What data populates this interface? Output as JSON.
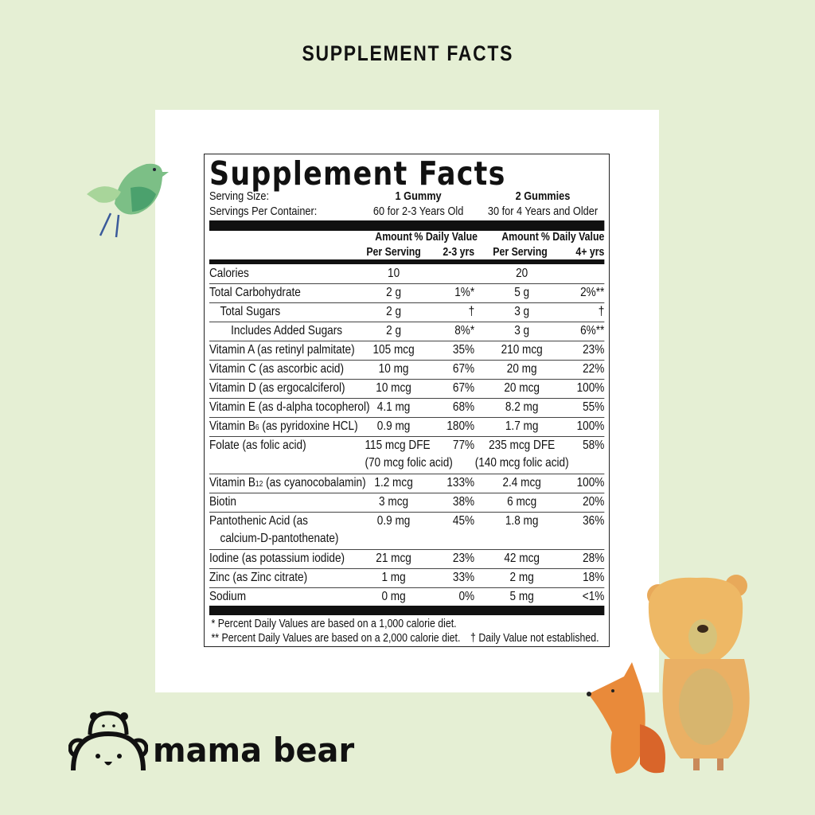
{
  "page_title": "SUPPLEMENT FACTS",
  "label": {
    "title": "Supplement Facts",
    "serving_size_label": "Serving Size:",
    "servings_per_container_label": "Servings Per Container:",
    "serving_1": "1 Gummy",
    "servings_1": "60 for 2-3 Years Old",
    "serving_2": "2 Gummies",
    "servings_2": "30 for 4 Years and Older",
    "headers": {
      "amount_1": [
        "Amount",
        "Per Serving"
      ],
      "dv_1": [
        "% Daily Value",
        "2-3 yrs"
      ],
      "amount_2": [
        "Amount",
        "Per Serving"
      ],
      "dv_2": [
        "% Daily Value",
        "4+ yrs"
      ]
    },
    "rows": [
      {
        "name": "Calories",
        "amt1": "10",
        "dv1": "",
        "amt2": "20",
        "dv2": "",
        "indent": 0
      },
      {
        "name": "Total Carbohydrate",
        "amt1": "2 g",
        "dv1": "1%*",
        "amt2": "5 g",
        "dv2": "2%**",
        "indent": 0
      },
      {
        "name": "Total Sugars",
        "amt1": "2 g",
        "dv1": "†",
        "amt2": "3 g",
        "dv2": "†",
        "indent": 1
      },
      {
        "name": "Includes Added Sugars",
        "amt1": "2 g",
        "dv1": "8%*",
        "amt2": "3 g",
        "dv2": "6%**",
        "indent": 2
      },
      {
        "name": "Vitamin A (as retinyl palmitate)",
        "amt1": "105 mcg",
        "dv1": "35%",
        "amt2": "210 mcg",
        "dv2": "23%",
        "indent": 0
      },
      {
        "name": "Vitamin C (as ascorbic acid)",
        "amt1": "10 mg",
        "dv1": "67%",
        "amt2": "20 mg",
        "dv2": "22%",
        "indent": 0
      },
      {
        "name": "Vitamin D (as ergocalciferol)",
        "amt1": "10 mcg",
        "dv1": "67%",
        "amt2": "20 mcg",
        "dv2": "100%",
        "indent": 0
      },
      {
        "name": "Vitamin E (as d-alpha tocopherol)",
        "amt1": "4.1 mg",
        "dv1": "68%",
        "amt2": "8.2 mg",
        "dv2": "55%",
        "indent": 0
      },
      {
        "name": "Vitamin B",
        "name_sub": "6",
        "name_post": " (as pyridoxine HCL)",
        "amt1": "0.9 mg",
        "dv1": "180%",
        "amt2": "1.7 mg",
        "dv2": "100%",
        "indent": 0
      },
      {
        "name": "Folate (as folic acid)",
        "amt1": "115 mcg DFE",
        "amt1_line2": "(70 mcg folic acid)",
        "dv1": "77%",
        "amt2": "235 mcg DFE",
        "amt2_line2": "(140 mcg folic acid)",
        "dv2": "58%",
        "indent": 0
      },
      {
        "name": "Vitamin B",
        "name_sub": "12",
        "name_post": " (as cyanocobalamin)",
        "amt1": "1.2 mcg",
        "dv1": "133%",
        "amt2": "2.4 mcg",
        "dv2": "100%",
        "indent": 0
      },
      {
        "name": "Biotin",
        "amt1": "3 mcg",
        "dv1": "38%",
        "amt2": "6 mcg",
        "dv2": "20%",
        "indent": 0
      },
      {
        "name": "Pantothenic Acid (as",
        "name_line2": "calcium-D-pantothenate)",
        "amt1": "0.9 mg",
        "dv1": "45%",
        "amt2": "1.8 mg",
        "dv2": "36%",
        "indent": 0
      },
      {
        "name": "Iodine (as potassium iodide)",
        "amt1": "21 mcg",
        "dv1": "23%",
        "amt2": "42 mcg",
        "dv2": "28%",
        "indent": 0
      },
      {
        "name": "Zinc (as Zinc citrate)",
        "amt1": "1 mg",
        "dv1": "33%",
        "amt2": "2 mg",
        "dv2": "18%",
        "indent": 0
      },
      {
        "name": "Sodium",
        "amt1": "0 mg",
        "dv1": "0%",
        "amt2": "5 mg",
        "dv2": "<1%",
        "indent": 0
      }
    ],
    "footnote_1": "* Percent Daily Values are based on a 1,000 calorie diet.",
    "footnote_2": "** Percent Daily Values are based on a 2,000 calorie diet.",
    "footnote_3": "† Daily Value not established."
  },
  "brand": {
    "name": "mama bear",
    "icon": "bear-logo-icon"
  },
  "colors": {
    "background": "#e5efd4",
    "panel": "#ffffff",
    "text": "#111111"
  }
}
